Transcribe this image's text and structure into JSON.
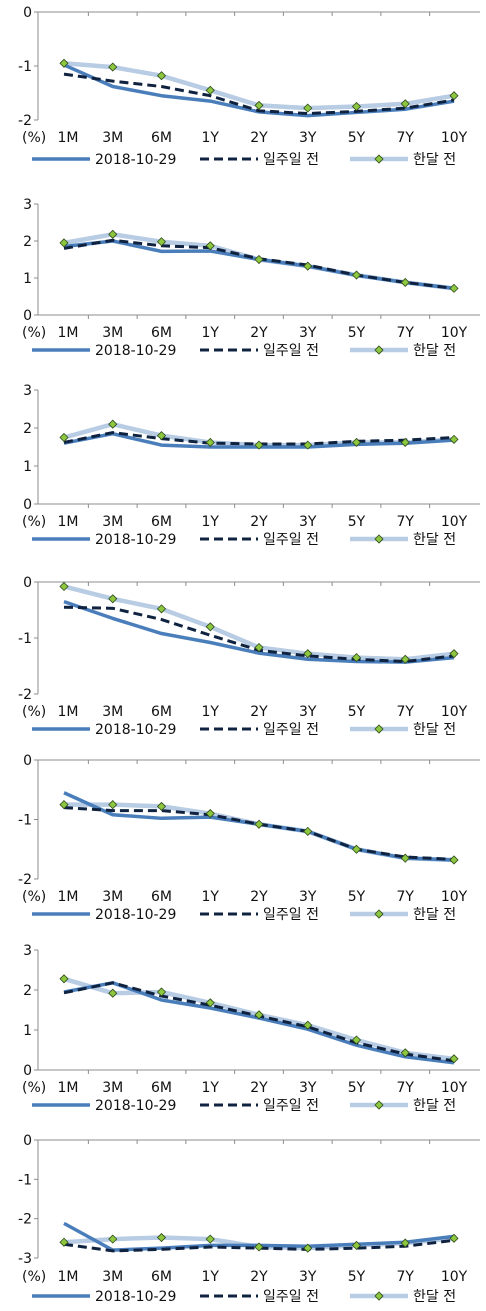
{
  "legend": {
    "current": "2018-10-29",
    "week_ago": "일주일 전",
    "month_ago": "한달 전"
  },
  "colors": {
    "current": "#4a7ebb",
    "week_ago": "#0f2340",
    "month_ago": "#b8cce4",
    "marker": "#8dc63f",
    "axis": "#8c8c8c"
  },
  "chart_data": [
    {
      "type": "line",
      "categories": [
        "1M",
        "3M",
        "6M",
        "1Y",
        "2Y",
        "3Y",
        "5Y",
        "7Y",
        "10Y"
      ],
      "unit_label": "(%)",
      "ylim": [
        -2,
        0
      ],
      "yticks": [
        0,
        -1,
        -2
      ],
      "series": [
        {
          "name": "2018-10-29",
          "values": [
            -0.98,
            -1.38,
            -1.55,
            -1.65,
            -1.85,
            -1.92,
            -1.86,
            -1.8,
            -1.65
          ]
        },
        {
          "name": "일주일 전",
          "values": [
            -1.15,
            -1.28,
            -1.38,
            -1.55,
            -1.83,
            -1.88,
            -1.84,
            -1.78,
            -1.63
          ]
        },
        {
          "name": "한달 전",
          "values": [
            -0.95,
            -1.02,
            -1.18,
            -1.45,
            -1.73,
            -1.78,
            -1.75,
            -1.7,
            -1.55
          ]
        }
      ]
    },
    {
      "type": "line",
      "categories": [
        "1M",
        "3M",
        "6M",
        "1Y",
        "2Y",
        "3Y",
        "5Y",
        "7Y",
        "10Y"
      ],
      "unit_label": "(%)",
      "ylim": [
        0,
        3
      ],
      "yticks": [
        3,
        2,
        1,
        0
      ],
      "series": [
        {
          "name": "2018-10-29",
          "values": [
            1.85,
            2.0,
            1.72,
            1.73,
            1.5,
            1.32,
            1.07,
            0.88,
            0.72
          ]
        },
        {
          "name": "일주일 전",
          "values": [
            1.8,
            2.02,
            1.87,
            1.82,
            1.52,
            1.35,
            1.08,
            0.88,
            0.72
          ]
        },
        {
          "name": "한달 전",
          "values": [
            1.95,
            2.18,
            1.98,
            1.87,
            1.5,
            1.32,
            1.08,
            0.88,
            0.72
          ]
        }
      ]
    },
    {
      "type": "line",
      "categories": [
        "1M",
        "3M",
        "6M",
        "1Y",
        "2Y",
        "3Y",
        "5Y",
        "7Y",
        "10Y"
      ],
      "unit_label": "(%)",
      "ylim": [
        0,
        3
      ],
      "yticks": [
        3,
        2,
        1,
        0
      ],
      "series": [
        {
          "name": "2018-10-29",
          "values": [
            1.6,
            1.85,
            1.55,
            1.5,
            1.5,
            1.5,
            1.57,
            1.6,
            1.68
          ]
        },
        {
          "name": "일주일 전",
          "values": [
            1.62,
            1.88,
            1.72,
            1.6,
            1.58,
            1.58,
            1.65,
            1.68,
            1.75
          ]
        },
        {
          "name": "한달 전",
          "values": [
            1.75,
            2.1,
            1.8,
            1.62,
            1.55,
            1.55,
            1.62,
            1.62,
            1.7
          ]
        }
      ]
    },
    {
      "type": "line",
      "categories": [
        "1M",
        "3M",
        "6M",
        "1Y",
        "2Y",
        "3Y",
        "5Y",
        "7Y",
        "10Y"
      ],
      "unit_label": "(%)",
      "ylim": [
        -2,
        0
      ],
      "yticks": [
        0,
        -1,
        -2
      ],
      "series": [
        {
          "name": "2018-10-29",
          "values": [
            -0.35,
            -0.65,
            -0.92,
            -1.08,
            -1.27,
            -1.38,
            -1.42,
            -1.43,
            -1.35
          ]
        },
        {
          "name": "일주일 전",
          "values": [
            -0.45,
            -0.47,
            -0.67,
            -0.95,
            -1.22,
            -1.32,
            -1.38,
            -1.42,
            -1.32
          ]
        },
        {
          "name": "한달 전",
          "values": [
            -0.08,
            -0.3,
            -0.48,
            -0.8,
            -1.17,
            -1.28,
            -1.35,
            -1.38,
            -1.28
          ]
        }
      ]
    },
    {
      "type": "line",
      "categories": [
        "1M",
        "3M",
        "6M",
        "1Y",
        "2Y",
        "3Y",
        "5Y",
        "7Y",
        "10Y"
      ],
      "unit_label": "(%)",
      "ylim": [
        -2,
        0
      ],
      "yticks": [
        0,
        -1,
        -2
      ],
      "series": [
        {
          "name": "2018-10-29",
          "values": [
            -0.55,
            -0.92,
            -0.98,
            -0.96,
            -1.08,
            -1.2,
            -1.5,
            -1.65,
            -1.68
          ]
        },
        {
          "name": "일주일 전",
          "values": [
            -0.8,
            -0.85,
            -0.85,
            -0.92,
            -1.08,
            -1.2,
            -1.5,
            -1.63,
            -1.67
          ]
        },
        {
          "name": "한달 전",
          "values": [
            -0.75,
            -0.75,
            -0.78,
            -0.9,
            -1.08,
            -1.2,
            -1.5,
            -1.65,
            -1.68
          ]
        }
      ]
    },
    {
      "type": "line",
      "categories": [
        "1M",
        "3M",
        "6M",
        "1Y",
        "2Y",
        "3Y",
        "5Y",
        "7Y",
        "10Y"
      ],
      "unit_label": "(%)",
      "ylim": [
        0,
        3
      ],
      "yticks": [
        3,
        2,
        1,
        0
      ],
      "series": [
        {
          "name": "2018-10-29",
          "values": [
            1.95,
            2.18,
            1.75,
            1.55,
            1.3,
            1.02,
            0.62,
            0.33,
            0.18
          ]
        },
        {
          "name": "일주일 전",
          "values": [
            1.93,
            2.18,
            1.85,
            1.62,
            1.35,
            1.08,
            0.68,
            0.4,
            0.23
          ]
        },
        {
          "name": "한달 전",
          "values": [
            2.28,
            1.92,
            1.95,
            1.68,
            1.38,
            1.12,
            0.75,
            0.43,
            0.28
          ]
        }
      ]
    },
    {
      "type": "line",
      "categories": [
        "1M",
        "3M",
        "6M",
        "1Y",
        "2Y",
        "3Y",
        "5Y",
        "7Y",
        "10Y"
      ],
      "unit_label": "(%)",
      "ylim": [
        -3,
        0
      ],
      "yticks": [
        0,
        -1,
        -2,
        -3
      ],
      "series": [
        {
          "name": "2018-10-29",
          "values": [
            -2.12,
            -2.8,
            -2.75,
            -2.68,
            -2.68,
            -2.7,
            -2.65,
            -2.6,
            -2.45
          ]
        },
        {
          "name": "일주일 전",
          "values": [
            -2.65,
            -2.82,
            -2.78,
            -2.72,
            -2.75,
            -2.78,
            -2.75,
            -2.7,
            -2.55
          ]
        },
        {
          "name": "한달 전",
          "values": [
            -2.6,
            -2.52,
            -2.48,
            -2.52,
            -2.72,
            -2.75,
            -2.68,
            -2.62,
            -2.5
          ]
        }
      ]
    }
  ]
}
